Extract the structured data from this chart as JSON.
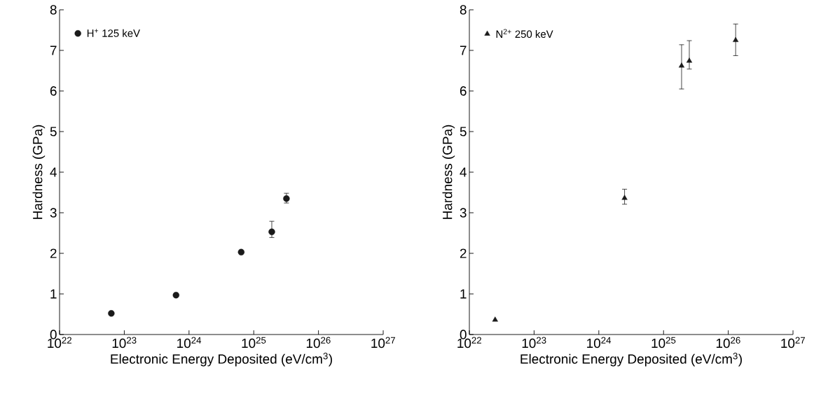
{
  "chart_data": [
    {
      "type": "scatter",
      "xlabel": "Electronic Energy Deposited (eV/cm$^{3}$)",
      "ylabel": "Hardness (GPa)",
      "log": "x",
      "legend": "top left",
      "marker": "circle",
      "xlim": [
        1e+22,
        1e+27
      ],
      "ylim": [
        0,
        8
      ],
      "xticks": [
        {
          "value": 1e+22,
          "label": "10$^{22}$"
        },
        {
          "value": 1e+23,
          "label": "10$^{23}$"
        },
        {
          "value": 1e+24,
          "label": "10$^{24}$"
        },
        {
          "value": 1e+25,
          "label": "10$^{25}$"
        },
        {
          "value": 1e+26,
          "label": "10$^{26}$"
        },
        {
          "value": 1e+27,
          "label": "10$^{27}$"
        }
      ],
      "yticks": [
        0,
        1,
        2,
        3,
        4,
        5,
        6,
        7,
        8
      ],
      "series": [
        {
          "name": "H$^{+}$ 125 keV",
          "color": "#1a1a1a",
          "x": [
            6.3e+22,
            6.3e+23,
            6.4e+24,
            1.9e+25,
            3.2e+25
          ],
          "values": [
            0.52,
            0.97,
            2.03,
            2.53,
            3.35
          ],
          "errors": [
            null,
            null,
            null,
            [
              2.39,
              2.79
            ],
            [
              3.24,
              3.48
            ]
          ]
        }
      ]
    },
    {
      "type": "scatter",
      "xlabel": "Electronic Energy Deposited (eV/cm$^{3}$)",
      "ylabel": "Hardness (GPa)",
      "log": "x",
      "legend": "top left",
      "marker": "triangle",
      "xlim": [
        1e+22,
        1e+27
      ],
      "ylim": [
        0,
        8
      ],
      "xticks": [
        {
          "value": 1e+22,
          "label": "10$^{22}$"
        },
        {
          "value": 1e+23,
          "label": "10$^{23}$"
        },
        {
          "value": 1e+24,
          "label": "10$^{24}$"
        },
        {
          "value": 1e+25,
          "label": "10$^{25}$"
        },
        {
          "value": 1e+26,
          "label": "10$^{26}$"
        },
        {
          "value": 1e+27,
          "label": "10$^{27}$"
        }
      ],
      "yticks": [
        0,
        1,
        2,
        3,
        4,
        5,
        6,
        7,
        8
      ],
      "series": [
        {
          "name": "N$^{2+}$ 250 keV",
          "color": "#1a1a1a",
          "x": [
            2.5e+22,
            2.5e+24,
            1.9e+25,
            2.5e+25,
            1.3e+26
          ],
          "values": [
            0.36,
            3.36,
            6.62,
            6.74,
            7.25
          ],
          "errors": [
            null,
            [
              3.21,
              3.58
            ],
            [
              6.05,
              7.14
            ],
            [
              6.54,
              7.24
            ],
            [
              6.87,
              7.65
            ]
          ]
        }
      ]
    }
  ]
}
